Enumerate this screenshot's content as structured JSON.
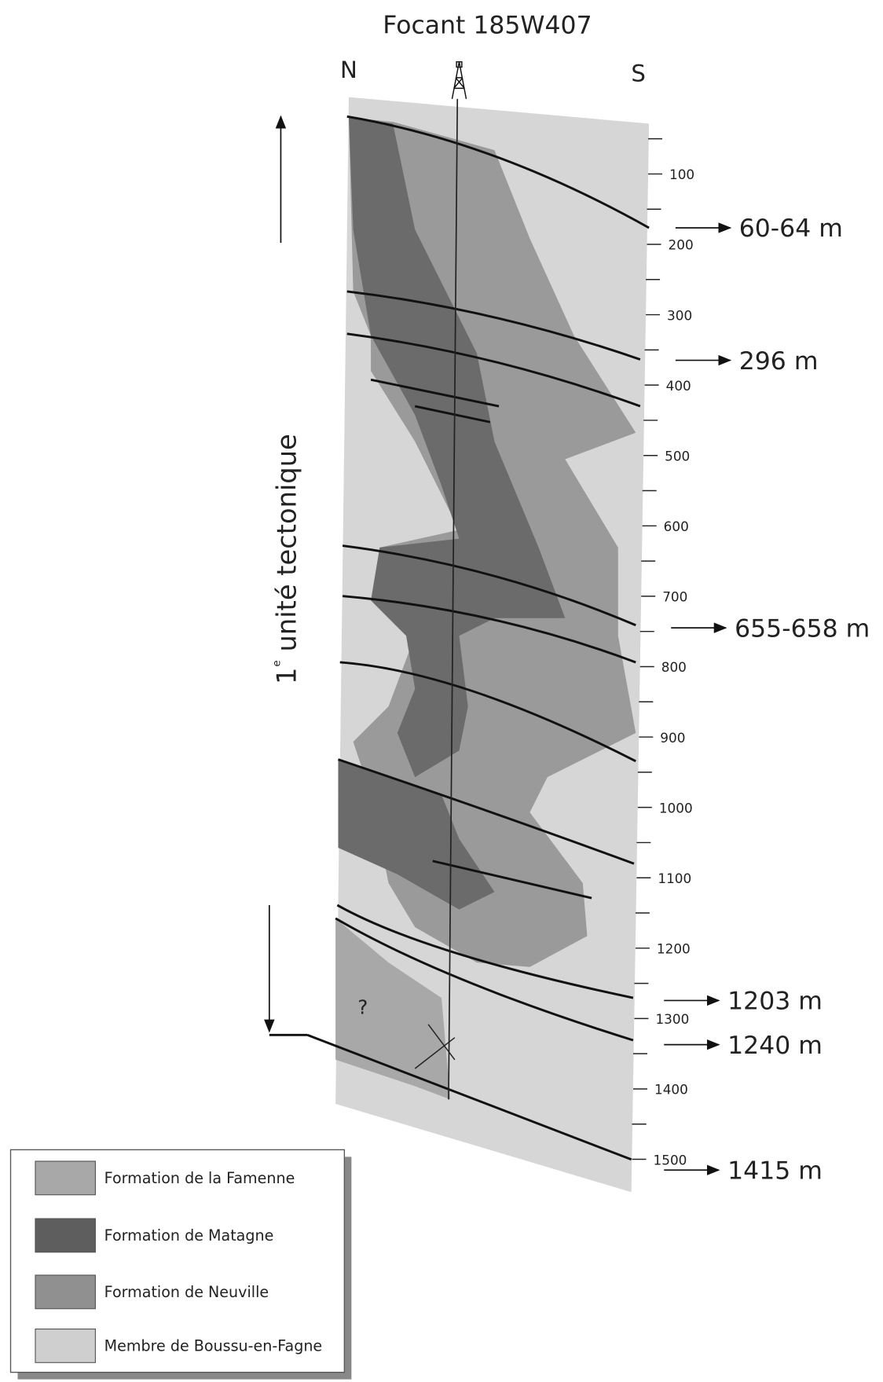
{
  "header": {
    "title": "Focant 185W407"
  },
  "orientation": {
    "left": "N",
    "right": "S"
  },
  "tectonic_unit": {
    "number": "1",
    "superscript": "e",
    "label": "unité tectonique"
  },
  "depth_scale": [
    "100",
    "200",
    "300",
    "400",
    "500",
    "600",
    "700",
    "800",
    "900",
    "1000",
    "1100",
    "1200",
    "1300",
    "1400",
    "1500"
  ],
  "markers": [
    "60-64 m",
    "296 m",
    "655-658 m",
    "1203 m",
    "1240 m",
    "1415 m"
  ],
  "unknown": "?",
  "legend": [
    {
      "label": "Formation de la Famenne"
    },
    {
      "label": "Formation de Matagne"
    },
    {
      "label": "Formation de Neuville"
    },
    {
      "label": "Membre de Boussu-en-Fagne"
    }
  ]
}
